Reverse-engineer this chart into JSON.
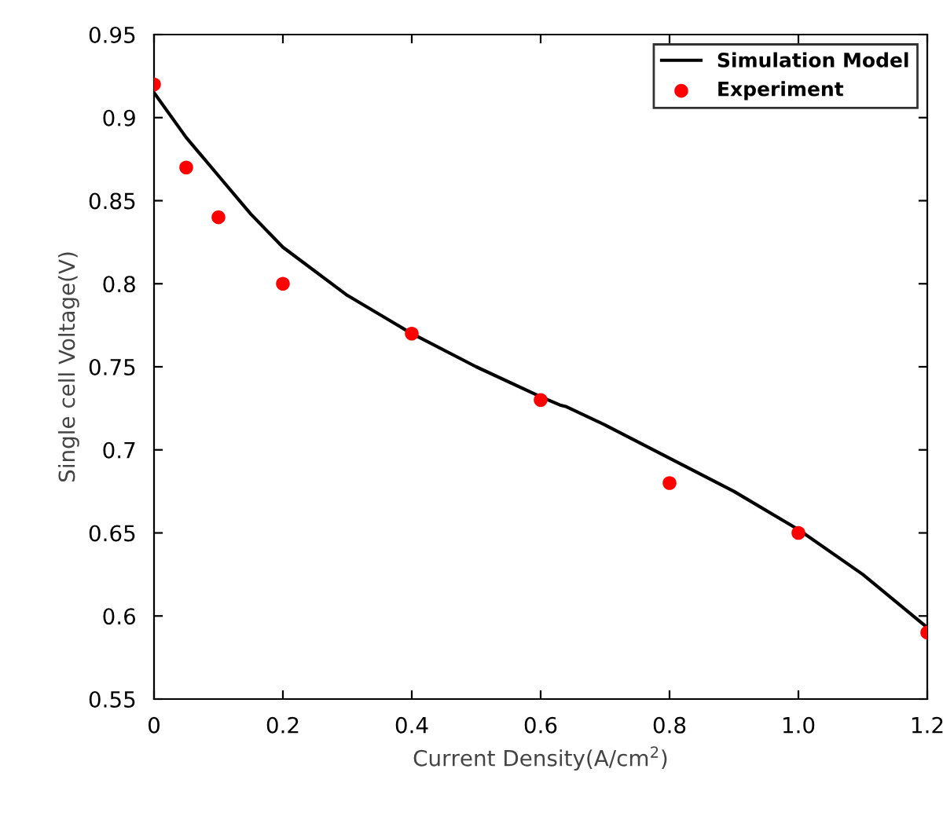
{
  "chart_data": {
    "type": "line",
    "xlabel": "Current Density(A/cm$^{2}$)",
    "ylabel": "Single cell Voltage(V)",
    "xlim": [
      0,
      1.2
    ],
    "xticks": [
      0,
      0.2,
      0.4,
      0.6,
      0.8,
      {
        "value": 1.0,
        "label": "1.0"
      },
      {
        "value": 1.2,
        "label": "1.2"
      }
    ],
    "ylim": [
      0.55,
      0.95
    ],
    "yticks": [
      0.55,
      0.6,
      0.65,
      0.7,
      0.75,
      0.8,
      0.85,
      0.9,
      0.95
    ],
    "legend": "top right",
    "grid": false,
    "series": [
      {
        "name": "Simulation Model",
        "color": "#000000",
        "marker": "none",
        "line_style": "solid",
        "x": [
          0,
          0.05,
          0.1,
          0.15,
          0.2,
          0.3,
          0.4,
          0.5,
          0.6,
          0.63,
          0.64,
          0.7,
          0.8,
          0.9,
          1.0,
          1.1,
          1.2
        ],
        "values": [
          0.915,
          0.888,
          0.865,
          0.842,
          0.822,
          0.793,
          0.77,
          0.75,
          0.732,
          0.727,
          0.726,
          0.715,
          0.695,
          0.675,
          0.652,
          0.625,
          0.593
        ]
      },
      {
        "name": "Experiment",
        "type": "scatter",
        "color": "#ff0000",
        "marker": "circle",
        "x": [
          0,
          0.05,
          0.1,
          0.2,
          0.4,
          0.6,
          0.8,
          1.0,
          1.2
        ],
        "values": [
          0.92,
          0.87,
          0.84,
          0.8,
          0.77,
          0.73,
          0.68,
          0.65,
          0.59
        ]
      }
    ]
  }
}
